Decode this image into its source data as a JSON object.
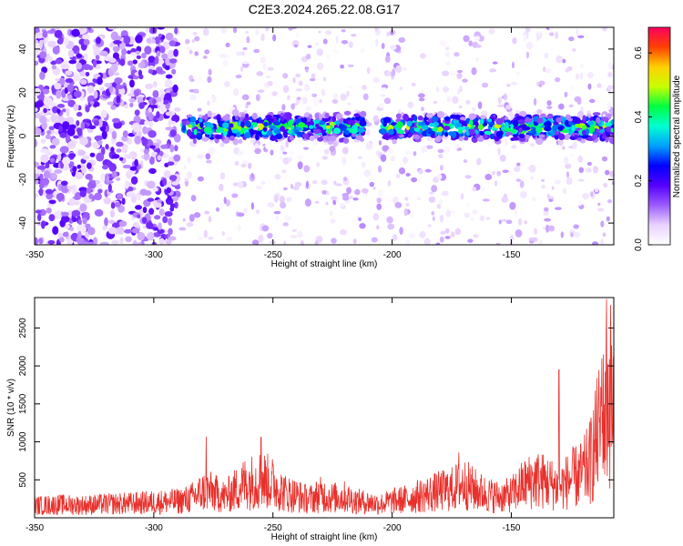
{
  "title": "C2E3.2024.265.22.08.G17",
  "chart_data": [
    {
      "type": "heatmap",
      "xlabel": "Height of straight line (km)",
      "ylabel": "Frequency (Hz)",
      "xlim": [
        -350,
        -107
      ],
      "ylim": [
        -50,
        50
      ],
      "xticks": [
        -350,
        -300,
        -250,
        -200,
        -150
      ],
      "yticks": [
        -40,
        -20,
        0,
        20,
        40
      ],
      "colorbar": {
        "label": "Normalized spectral amplitude",
        "range": [
          0.0,
          0.68
        ],
        "ticks": [
          0.0,
          0.2,
          0.4,
          0.6
        ],
        "colors": [
          "#ffffff",
          "#e9d2ff",
          "#9b5cff",
          "#5500ff",
          "#0000ff",
          "#00a0ff",
          "#00ffd0",
          "#00ff40",
          "#c8ff00",
          "#ffd000",
          "#ff4000",
          "#ff0060"
        ]
      },
      "features": [
        {
          "name": "signal band",
          "x_range": [
            -288,
            -107
          ],
          "frequency_center": 4,
          "amplitude": 0.35
        },
        {
          "name": "dense noise region",
          "x_range": [
            -350,
            -290
          ],
          "frequency_range": [
            -50,
            50
          ],
          "amplitude": 0.1
        },
        {
          "name": "sparse noise region",
          "x_range": [
            -288,
            -107
          ],
          "frequency_range": [
            -50,
            50
          ],
          "amplitude": 0.05
        }
      ]
    },
    {
      "type": "line",
      "xlabel": "Height of straight line (km)",
      "ylabel": "SNR (10 * v/v)",
      "xlim": [
        -350,
        -107
      ],
      "ylim": [
        0,
        2900
      ],
      "xticks": [
        -350,
        -300,
        -250,
        -200,
        -150
      ],
      "yticks": [
        500,
        1000,
        1500,
        2000,
        2500
      ],
      "color": "#e8302b",
      "series": [
        {
          "x": [
            -350,
            -340,
            -330,
            -320,
            -310,
            -300,
            -290,
            -285,
            -278,
            -270,
            -262,
            -255,
            -250,
            -245,
            -240,
            -235,
            -230,
            -225,
            -220,
            -215,
            -210,
            -205,
            -200,
            -195,
            -190,
            -185,
            -180,
            -175,
            -170,
            -165,
            -160,
            -155,
            -150,
            -145,
            -140,
            -135,
            -130,
            -125,
            -120,
            -117,
            -115,
            -113,
            -111,
            -110,
            -108,
            -107
          ],
          "y": [
            220,
            240,
            230,
            250,
            260,
            280,
            300,
            340,
            500,
            380,
            620,
            700,
            620,
            450,
            400,
            330,
            420,
            360,
            380,
            300,
            280,
            250,
            300,
            330,
            380,
            430,
            480,
            520,
            620,
            500,
            420,
            380,
            420,
            600,
            700,
            650,
            550,
            700,
            800,
            1000,
            1300,
            1600,
            1800,
            2100,
            2300,
            1800
          ]
        }
      ],
      "peaks": [
        {
          "x": -278,
          "y": 1070
        },
        {
          "x": -255,
          "y": 1060
        },
        {
          "x": -172,
          "y": 860
        },
        {
          "x": -130,
          "y": 1950
        },
        {
          "x": -112,
          "y": 2100
        },
        {
          "x": -110,
          "y": 2880
        }
      ]
    }
  ]
}
